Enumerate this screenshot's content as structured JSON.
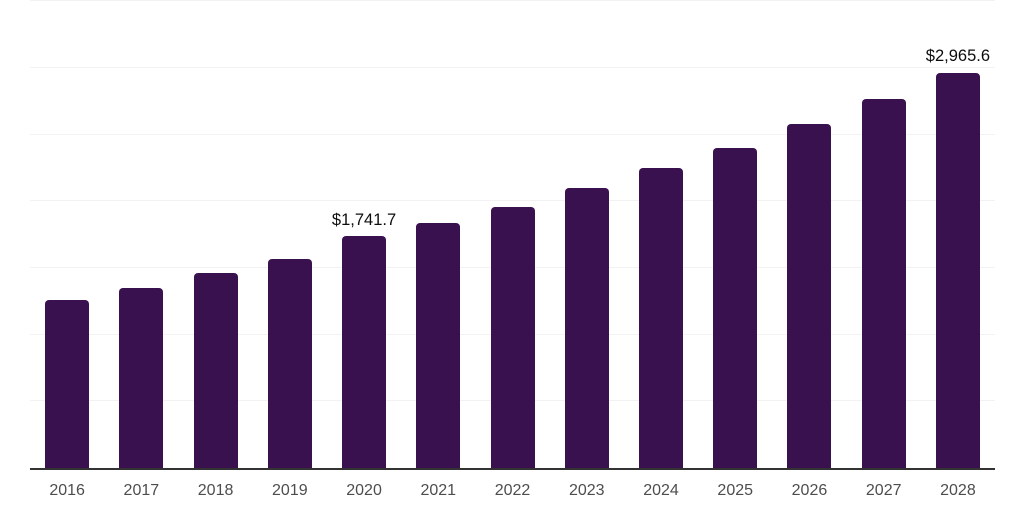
{
  "chart_data": {
    "type": "bar",
    "title": "",
    "xlabel": "",
    "ylabel": "",
    "categories": [
      "2016",
      "2017",
      "2018",
      "2019",
      "2020",
      "2021",
      "2022",
      "2023",
      "2024",
      "2025",
      "2026",
      "2027",
      "2028"
    ],
    "values": [
      1260,
      1350,
      1460,
      1570,
      1741.7,
      1840,
      1960,
      2100,
      2250,
      2400,
      2580,
      2770,
      2965.6
    ],
    "data_labels": [
      null,
      null,
      null,
      null,
      "$1,741.7",
      null,
      null,
      null,
      null,
      null,
      null,
      null,
      "$2,965.6"
    ],
    "ylim": [
      0,
      3500
    ],
    "gridline_step": 500,
    "grid": "horizontal",
    "legend": "none",
    "y_tick_labels_visible": false,
    "colors": {
      "bar": "#38114e",
      "gridline": "#f2f2f2",
      "axis_line": "#333333",
      "x_tick_label": "#4d4d4d",
      "value_label": "#0d0d0d",
      "background": "#ffffff"
    }
  }
}
